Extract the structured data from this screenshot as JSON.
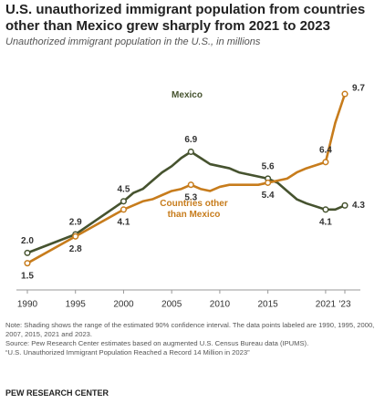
{
  "chart_data": {
    "type": "line",
    "title": "U.S. unauthorized immigrant population from countries other than Mexico grew sharply from 2021 to 2023",
    "subtitle": "Unauthorized immigrant population in the U.S., in millions",
    "x": [
      1990,
      1995,
      2000,
      2001,
      2002,
      2003,
      2004,
      2005,
      2006,
      2007,
      2008,
      2009,
      2010,
      2011,
      2012,
      2013,
      2014,
      2015,
      2016,
      2017,
      2018,
      2019,
      2021,
      2022,
      2023
    ],
    "series": [
      {
        "name": "Mexico",
        "color": "#46532f",
        "values": [
          2.0,
          2.9,
          4.5,
          4.9,
          5.1,
          5.5,
          5.9,
          6.2,
          6.6,
          6.9,
          6.6,
          6.3,
          6.2,
          6.1,
          5.9,
          5.8,
          5.7,
          5.6,
          5.4,
          5.0,
          4.6,
          4.4,
          4.1,
          4.1,
          4.3
        ],
        "value_labels": [
          "2.0",
          "2.9",
          "4.5",
          null,
          null,
          null,
          null,
          null,
          null,
          "6.9",
          null,
          null,
          null,
          null,
          null,
          null,
          null,
          "5.6",
          null,
          null,
          null,
          null,
          "4.1",
          null,
          "4.3"
        ]
      },
      {
        "name": "Countries other than Mexico",
        "color": "#c77c1c",
        "values": [
          1.5,
          2.8,
          4.1,
          4.3,
          4.5,
          4.6,
          4.8,
          5.0,
          5.1,
          5.3,
          5.1,
          5.0,
          5.2,
          5.3,
          5.3,
          5.3,
          5.3,
          5.4,
          5.5,
          5.6,
          5.9,
          6.1,
          6.4,
          8.3,
          9.7
        ],
        "value_labels": [
          "1.5",
          "2.8",
          "4.1",
          null,
          null,
          null,
          null,
          null,
          null,
          "5.3",
          null,
          null,
          null,
          null,
          null,
          null,
          null,
          "5.4",
          null,
          null,
          null,
          null,
          "6.4",
          null,
          "9.7"
        ]
      }
    ],
    "xlim": [
      1990,
      2023
    ],
    "xticks": [
      1990,
      1995,
      2000,
      2005,
      2010,
      2015,
      2021,
      {
        "value": 2023,
        "label": "'23"
      }
    ],
    "ylim": [
      1,
      10.5
    ],
    "notes": [
      "Note: Shading shows the range of the estimated 90% confidence interval. The data points labeled are 1990, 1995, 2000, 2007, 2015, 2021 and 2023.",
      "Source: Pew Research Center estimates based on augmented U.S. Census Bureau data (IPUMS).",
      "“U.S. Unauthorized Immigrant Population Reached a Record 14 Million in 2023”"
    ],
    "footer": "PEW RESEARCH CENTER"
  }
}
